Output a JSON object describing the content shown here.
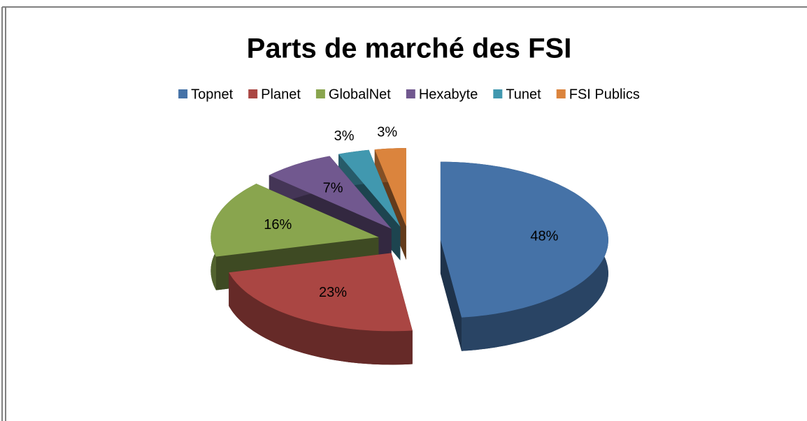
{
  "chart_data": {
    "type": "pie",
    "title": "Parts de marché des FSI",
    "categories": [
      "Topnet",
      "Planet",
      "GlobalNet",
      "Hexabyte",
      "Tunet",
      "FSI Publics"
    ],
    "values": [
      48,
      23,
      16,
      7,
      3,
      3
    ],
    "value_labels": [
      "48%",
      "23%",
      "16%",
      "7%",
      "3%",
      "3%"
    ],
    "colors": [
      "#4572a7",
      "#aa4643",
      "#89a54e",
      "#71588f",
      "#4198af",
      "#db843d"
    ],
    "legend": "top"
  }
}
